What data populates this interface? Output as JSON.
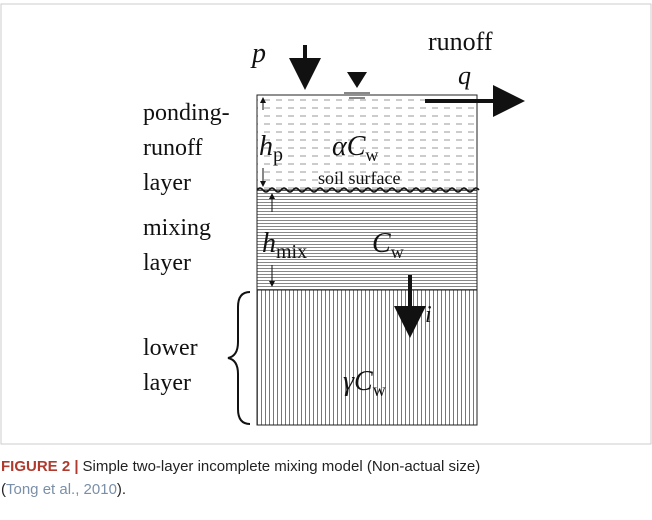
{
  "figure": {
    "labels": {
      "p": "p",
      "runoff": "runoff",
      "q": "q",
      "i": "i",
      "soil_surface": "soil surface"
    },
    "layers": [
      {
        "name": [
          "ponding-",
          "runoff",
          "layer"
        ],
        "height": {
          "symbol": "h",
          "sub": "p"
        },
        "concentration": {
          "symbol": "αC",
          "sub": "w"
        }
      },
      {
        "name": [
          "mixing",
          "layer"
        ],
        "height": {
          "symbol": "h",
          "sub": "mix"
        },
        "concentration": {
          "symbol": "C",
          "sub": "w"
        }
      },
      {
        "name": [
          "lower",
          "layer"
        ],
        "concentration": {
          "symbol": "γC",
          "sub": "w"
        }
      }
    ]
  },
  "caption": {
    "label": "FIGURE 2 |",
    "text": "Simple two-layer incomplete mixing model (Non-actual size)",
    "open": "(",
    "citation": "Tong et al., 2010",
    "close": ")."
  }
}
